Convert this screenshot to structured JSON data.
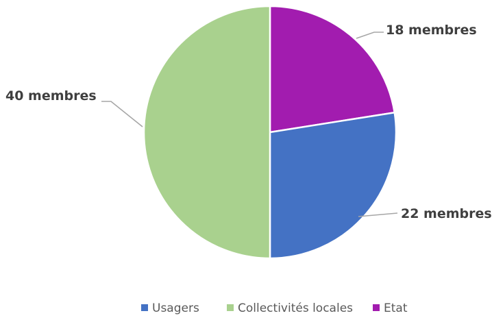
{
  "chart_data": {
    "type": "pie",
    "slices": [
      {
        "label": "Usagers",
        "value": 22,
        "data_label": "22 membres",
        "color": "#4472C4"
      },
      {
        "label": "Collectivités locales",
        "value": 40,
        "data_label": "40 membres",
        "color": "#A9D18E"
      },
      {
        "label": "Etat",
        "value": 18,
        "data_label": "18 membres",
        "color": "#A21CAF"
      }
    ],
    "legend_position": "bottom",
    "start_angle": "top",
    "direction": "clockwise"
  }
}
